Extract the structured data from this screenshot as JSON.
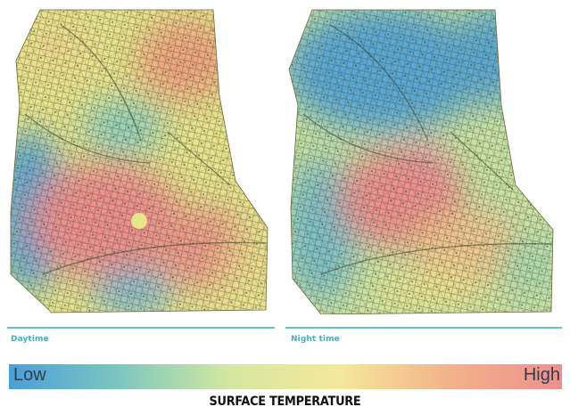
{
  "maps": [
    {
      "id": "day",
      "caption": "Daytime"
    },
    {
      "id": "night",
      "caption": "Night time"
    }
  ],
  "legend": {
    "low_label": "Low",
    "high_label": "High",
    "title": "SURFACE TEMPERATURE",
    "colors": [
      "#4a9fd8",
      "#7cc7c0",
      "#d6e7a0",
      "#f4e89a",
      "#f3b189",
      "#ef8f8e"
    ]
  }
}
